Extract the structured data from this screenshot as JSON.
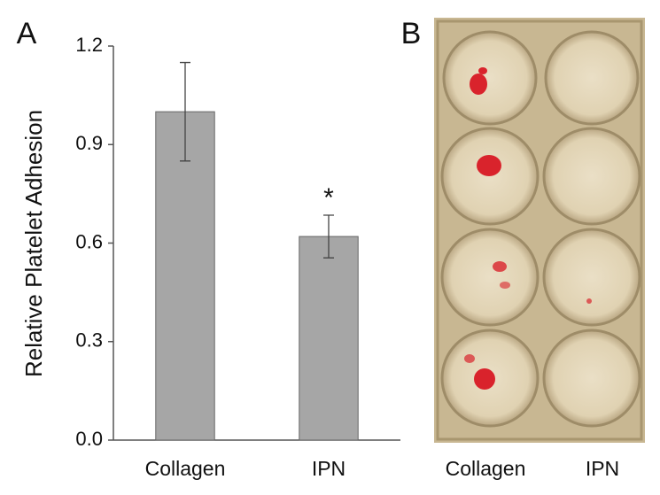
{
  "chart_data": {
    "type": "bar",
    "panel_label": "A",
    "y_label": "Relative Platelet Adhesion",
    "categories": [
      "Collagen",
      "IPN"
    ],
    "values": [
      1.0,
      0.62
    ],
    "errors": [
      0.15,
      0.065
    ],
    "significance_marker": "*",
    "color": "#a6a6a6",
    "ylim": [
      0,
      1.2
    ],
    "yticks": [
      {
        "value": 0,
        "label": "0.0"
      },
      0.3,
      0.6,
      0.9,
      1.2
    ],
    "grid": false
  },
  "photo_panel": {
    "label": "B",
    "columns": [
      "Collagen",
      "IPN"
    ]
  }
}
